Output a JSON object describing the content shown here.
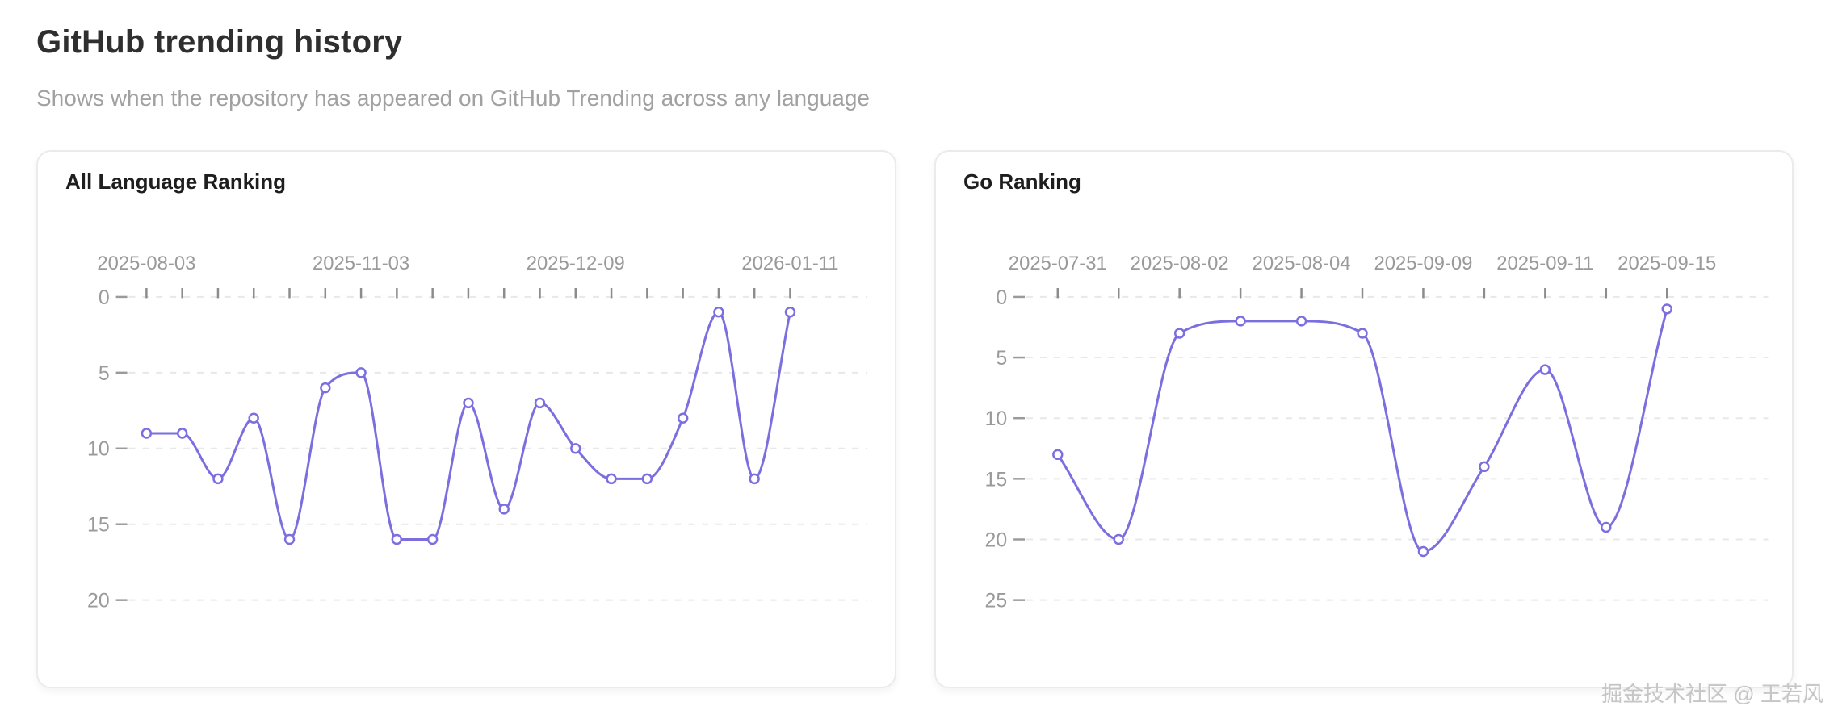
{
  "page": {
    "title": "GitHub trending history",
    "subtitle": "Shows when the repository has appeared on GitHub Trending across any language",
    "watermark": "掘金技术社区 @ 王若风"
  },
  "colors": {
    "line": "#7b6fe0",
    "marker_fill": "#ffffff",
    "axis_label": "#9a9a9a",
    "axis_tick": "#8c8c8c",
    "grid_line": "#e8e8e8",
    "card_border": "#ebebeb",
    "page_title_text": "#2f2f2f",
    "subtitle_text": "#a1a1a1",
    "chart_title_text": "#1e1e1e",
    "watermark_text": "#c6c6c6"
  },
  "chart_data": [
    {
      "type": "line",
      "title": "All Language Ranking",
      "x_labels": [
        "2025-08-03",
        "2025-11-03",
        "2025-12-09",
        "2026-01-11"
      ],
      "x_label_indices": [
        0,
        6,
        12,
        18
      ],
      "y_ticks": [
        0,
        5,
        10,
        15,
        20
      ],
      "y_axis": "ranking (inverted, 0 best at top)",
      "x_axis_position": "top",
      "grid": "horizontal dashed",
      "legend": "none",
      "smooth": true,
      "values": [
        9,
        9,
        12,
        8,
        16,
        6,
        5,
        16,
        16,
        7,
        14,
        7,
        10,
        12,
        12,
        8,
        1,
        12,
        1
      ]
    },
    {
      "type": "line",
      "title": "Go Ranking",
      "x_labels": [
        "2025-07-31",
        "2025-08-02",
        "2025-08-04",
        "2025-09-09",
        "2025-09-11",
        "2025-09-15"
      ],
      "x_label_indices": [
        0,
        2,
        4,
        6,
        8,
        10
      ],
      "y_ticks": [
        0,
        5,
        10,
        15,
        20,
        25
      ],
      "y_axis": "ranking (inverted, 0 best at top)",
      "x_axis_position": "top",
      "grid": "horizontal dashed",
      "legend": "none",
      "smooth": true,
      "values": [
        13,
        20,
        3,
        2,
        2,
        3,
        21,
        14,
        6,
        19,
        1
      ]
    }
  ]
}
